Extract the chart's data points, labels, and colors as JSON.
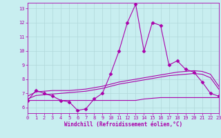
{
  "bg_color": "#c8eef0",
  "grid_color": "#b0d8da",
  "line_color": "#aa00aa",
  "xlim": [
    0,
    23
  ],
  "ylim": [
    5.6,
    13.4
  ],
  "yticks": [
    6,
    7,
    8,
    9,
    10,
    11,
    12,
    13
  ],
  "xticks": [
    0,
    1,
    2,
    3,
    4,
    5,
    6,
    7,
    8,
    9,
    10,
    11,
    12,
    13,
    14,
    15,
    16,
    17,
    18,
    19,
    20,
    21,
    22,
    23
  ],
  "xlabel": "Windchill (Refroidissement éolien,°C)",
  "curve1_x": [
    0,
    1,
    2,
    3,
    4,
    5,
    6,
    7,
    8,
    9,
    10,
    11,
    12,
    13,
    14,
    15,
    16,
    17,
    18,
    19,
    20,
    21,
    22,
    23
  ],
  "curve1_y": [
    6.5,
    7.2,
    7.0,
    6.8,
    6.5,
    6.4,
    5.8,
    5.9,
    6.6,
    7.0,
    8.4,
    10.0,
    12.0,
    13.3,
    10.0,
    12.0,
    11.8,
    9.0,
    9.3,
    8.7,
    8.5,
    7.8,
    7.0,
    6.8
  ],
  "curve2_x": [
    0,
    1,
    2,
    3,
    4,
    5,
    6,
    7,
    8,
    9,
    10,
    11,
    12,
    13,
    14,
    15,
    16,
    17,
    18,
    19,
    20,
    21,
    22,
    23
  ],
  "curve2_y": [
    6.8,
    7.1,
    7.15,
    7.2,
    7.2,
    7.2,
    7.25,
    7.3,
    7.4,
    7.5,
    7.65,
    7.8,
    7.9,
    8.0,
    8.1,
    8.2,
    8.3,
    8.4,
    8.5,
    8.55,
    8.6,
    8.55,
    8.35,
    7.5
  ],
  "curve3_x": [
    0,
    1,
    2,
    3,
    4,
    5,
    6,
    7,
    8,
    9,
    10,
    11,
    12,
    13,
    14,
    15,
    16,
    17,
    18,
    19,
    20,
    21,
    22,
    23
  ],
  "curve3_y": [
    6.6,
    6.85,
    6.9,
    6.95,
    7.0,
    7.05,
    7.1,
    7.15,
    7.25,
    7.35,
    7.5,
    7.65,
    7.75,
    7.85,
    7.95,
    8.05,
    8.15,
    8.25,
    8.3,
    8.35,
    8.4,
    8.35,
    8.1,
    7.3
  ],
  "curve4_x": [
    0,
    1,
    2,
    3,
    4,
    5,
    6,
    7,
    8,
    9,
    10,
    11,
    12,
    13,
    14,
    15,
    16,
    17,
    18,
    19,
    20,
    21,
    22,
    23
  ],
  "curve4_y": [
    6.5,
    6.5,
    6.5,
    6.5,
    6.5,
    6.5,
    6.5,
    6.5,
    6.5,
    6.5,
    6.5,
    6.5,
    6.5,
    6.5,
    6.6,
    6.65,
    6.7,
    6.7,
    6.7,
    6.7,
    6.7,
    6.7,
    6.7,
    6.7
  ]
}
